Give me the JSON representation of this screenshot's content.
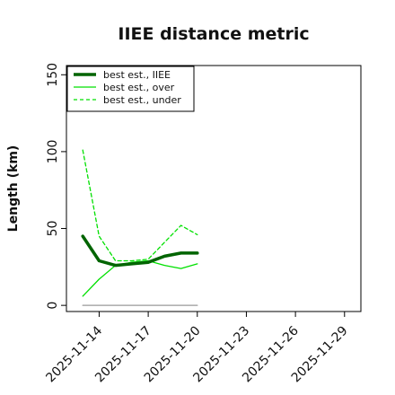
{
  "chart_data": {
    "type": "line",
    "title": "IIEE distance metric",
    "xlabel": "",
    "ylabel": "Length (km)",
    "x_ticks": [
      "2025-11-14",
      "2025-11-17",
      "2025-11-20",
      "2025-11-23",
      "2025-11-26",
      "2025-11-29"
    ],
    "x_range": [
      "2025-11-12",
      "2025-11-30"
    ],
    "ylim": [
      -4,
      156
    ],
    "y_ticks": [
      0,
      50,
      100,
      150
    ],
    "legend_position": "upper-left",
    "x": [
      "2025-11-13",
      "2025-11-14",
      "2025-11-15",
      "2025-11-16",
      "2025-11-17",
      "2025-11-18",
      "2025-11-19",
      "2025-11-20"
    ],
    "series": [
      {
        "name": "best est., IIEE",
        "color": "#006400",
        "style": "solid",
        "width": "thick",
        "values": [
          45,
          29,
          26,
          27,
          28,
          32,
          34,
          34
        ]
      },
      {
        "name": "best est., over",
        "color": "#00e000",
        "style": "solid",
        "width": "thin",
        "values": [
          6,
          17,
          26,
          28,
          29,
          26,
          24,
          27
        ]
      },
      {
        "name": "best est., under",
        "color": "#00e000",
        "style": "dashed",
        "width": "thin",
        "values": [
          101,
          45,
          29,
          29,
          30,
          41,
          52,
          46
        ]
      },
      {
        "color": "#999999",
        "style": "solid",
        "width": "thin",
        "values": [
          0,
          0,
          0,
          0,
          0,
          0,
          0,
          0
        ]
      }
    ]
  }
}
